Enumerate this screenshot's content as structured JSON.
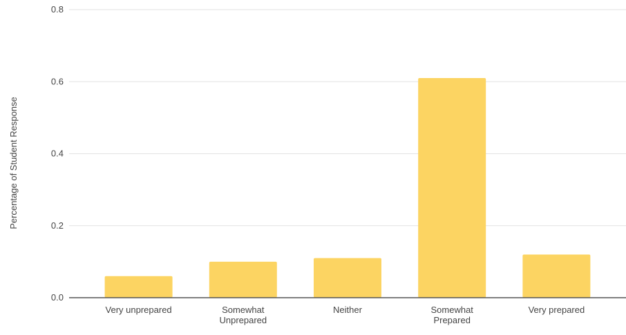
{
  "chart_data": {
    "type": "bar",
    "title": "",
    "xlabel": "",
    "ylabel": "Percentage of Student Response",
    "categories": [
      [
        "Very unprepared"
      ],
      [
        "Somewhat",
        "Unprepared"
      ],
      [
        "Neither"
      ],
      [
        "Somewhat",
        "Prepared"
      ],
      [
        "Very prepared"
      ]
    ],
    "values": [
      0.06,
      0.1,
      0.11,
      0.61,
      0.12
    ],
    "ylim": [
      0,
      0.8
    ],
    "yticks": [
      "0.0",
      "0.2",
      "0.4",
      "0.6",
      "0.8"
    ],
    "grid": true,
    "colors": {
      "bar": "#fcd462",
      "grid": "#e2e2e2",
      "axis": "#555555"
    }
  }
}
